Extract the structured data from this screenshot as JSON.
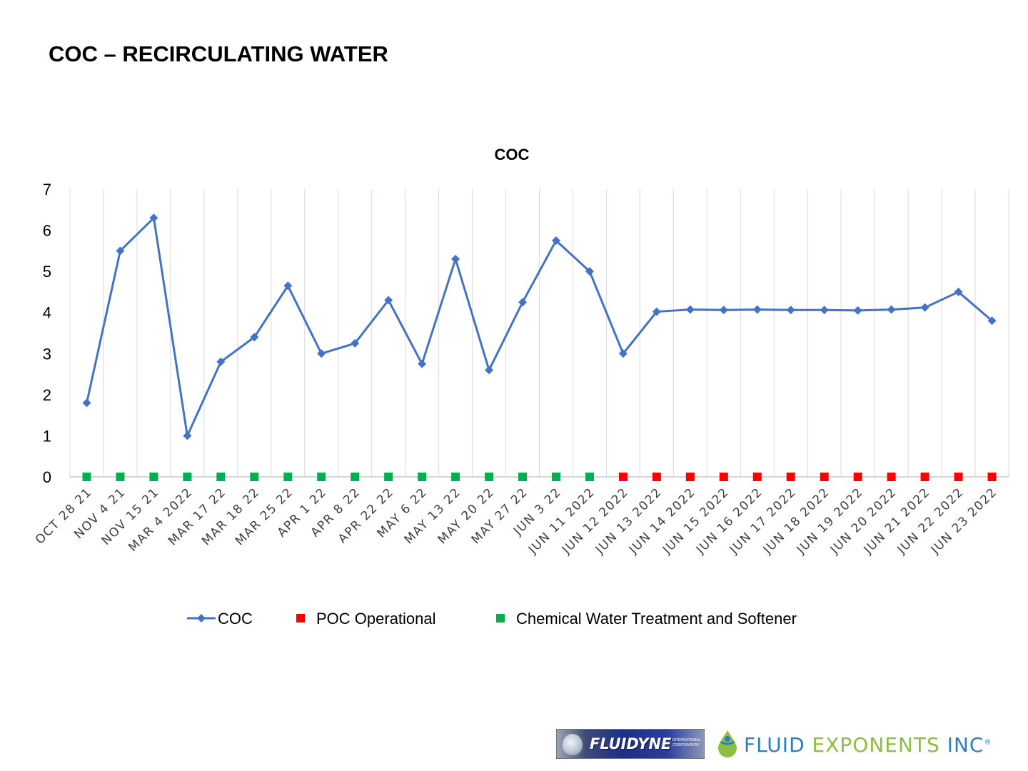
{
  "page": {
    "title": "COC – RECIRCULATING WATER"
  },
  "chart_data": {
    "type": "line",
    "title": "COC",
    "xlabel": "",
    "ylabel": "",
    "ylim": [
      0,
      7
    ],
    "yticks": [
      0,
      1,
      2,
      3,
      4,
      5,
      6,
      7
    ],
    "grid": "vertical",
    "legend_position": "bottom",
    "categories": [
      "OCT 28 21",
      "NOV 4 21",
      "NOV 15 21",
      "MAR 4 2022",
      "MAR 17 22",
      "MAR 18 22",
      "MAR 25 22",
      "APR 1 22",
      "APR 8 22",
      "APR 22 22",
      "MAY 6 22",
      "MAY 13 22",
      "MAY 20 22",
      "MAY 27 22",
      "JUN 3 22",
      "JUN 11 2022",
      "JUN 12 2022",
      "JUN 13 2022",
      "JUN 14 2022",
      "JUN 15 2022",
      "JUN 16 2022",
      "JUN 17 2022",
      "JUN 18 2022",
      "JUN 19 2022",
      "JUN 20 2022",
      "JUN 21 2022",
      "JUN 22 2022",
      "JUN 23 2022"
    ],
    "series": [
      {
        "name": "COC",
        "kind": "line",
        "color": "#4472c4",
        "values": [
          1.8,
          5.5,
          6.3,
          1.0,
          2.8,
          3.4,
          4.65,
          3.0,
          3.25,
          4.3,
          2.75,
          5.3,
          2.6,
          4.25,
          5.75,
          5.0,
          3.0,
          4.02,
          4.07,
          4.06,
          4.07,
          4.06,
          4.06,
          4.05,
          4.07,
          4.12,
          4.5,
          3.8
        ]
      },
      {
        "name": "POC Operational",
        "kind": "marker",
        "color": "#ff0000",
        "values": [
          null,
          null,
          null,
          null,
          null,
          null,
          null,
          null,
          null,
          null,
          null,
          null,
          null,
          null,
          null,
          null,
          0,
          0,
          0,
          0,
          0,
          0,
          0,
          0,
          0,
          0,
          0,
          0
        ]
      },
      {
        "name": "Chemical Water Treatment and Softener",
        "kind": "marker",
        "color": "#00b050",
        "values": [
          0,
          0,
          0,
          0,
          0,
          0,
          0,
          0,
          0,
          0,
          0,
          0,
          0,
          0,
          0,
          0,
          null,
          null,
          null,
          null,
          null,
          null,
          null,
          null,
          null,
          null,
          null,
          null
        ]
      }
    ]
  },
  "logos": {
    "fluidyne": {
      "name": "FLUIDYNE",
      "subtitle": "INTERNATIONAL CORPORATION"
    },
    "fluid_exponents": {
      "word1": "FLUID",
      "word2": "EXPONENTS",
      "word3": "INC",
      "mark": "®"
    }
  }
}
